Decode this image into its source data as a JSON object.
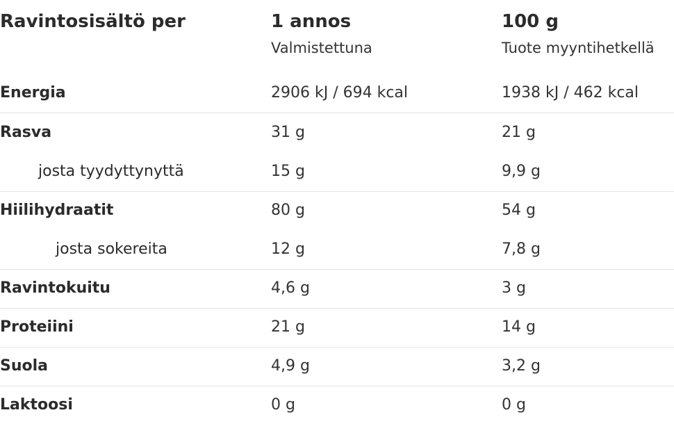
{
  "header": {
    "label": "Ravintosisältö per",
    "col_serving": {
      "title": "1 annos",
      "subtitle": "Valmistettuna"
    },
    "col_100g": {
      "title": "100 g",
      "subtitle": "Tuote myyntihetkellä"
    }
  },
  "rows": [
    {
      "label": "Energia",
      "serving": "2906 kJ / 694 kcal",
      "per100": "1938 kJ / 462 kcal"
    },
    {
      "label": "Rasva",
      "serving": "31 g",
      "per100": "21 g"
    },
    {
      "label": "josta tyydyttynyttä",
      "serving": "15 g",
      "per100": "9,9 g"
    },
    {
      "label": "Hiilihydraatit",
      "serving": "80 g",
      "per100": "54 g"
    },
    {
      "label": "josta sokereita",
      "serving": "12 g",
      "per100": "7,8 g"
    },
    {
      "label": "Ravintokuitu",
      "serving": "4,6 g",
      "per100": "3 g"
    },
    {
      "label": "Proteiini",
      "serving": "21 g",
      "per100": "14 g"
    },
    {
      "label": "Suola",
      "serving": "4,9 g",
      "per100": "3,2 g"
    },
    {
      "label": "Laktoosi",
      "serving": "0 g",
      "per100": "0 g"
    }
  ]
}
